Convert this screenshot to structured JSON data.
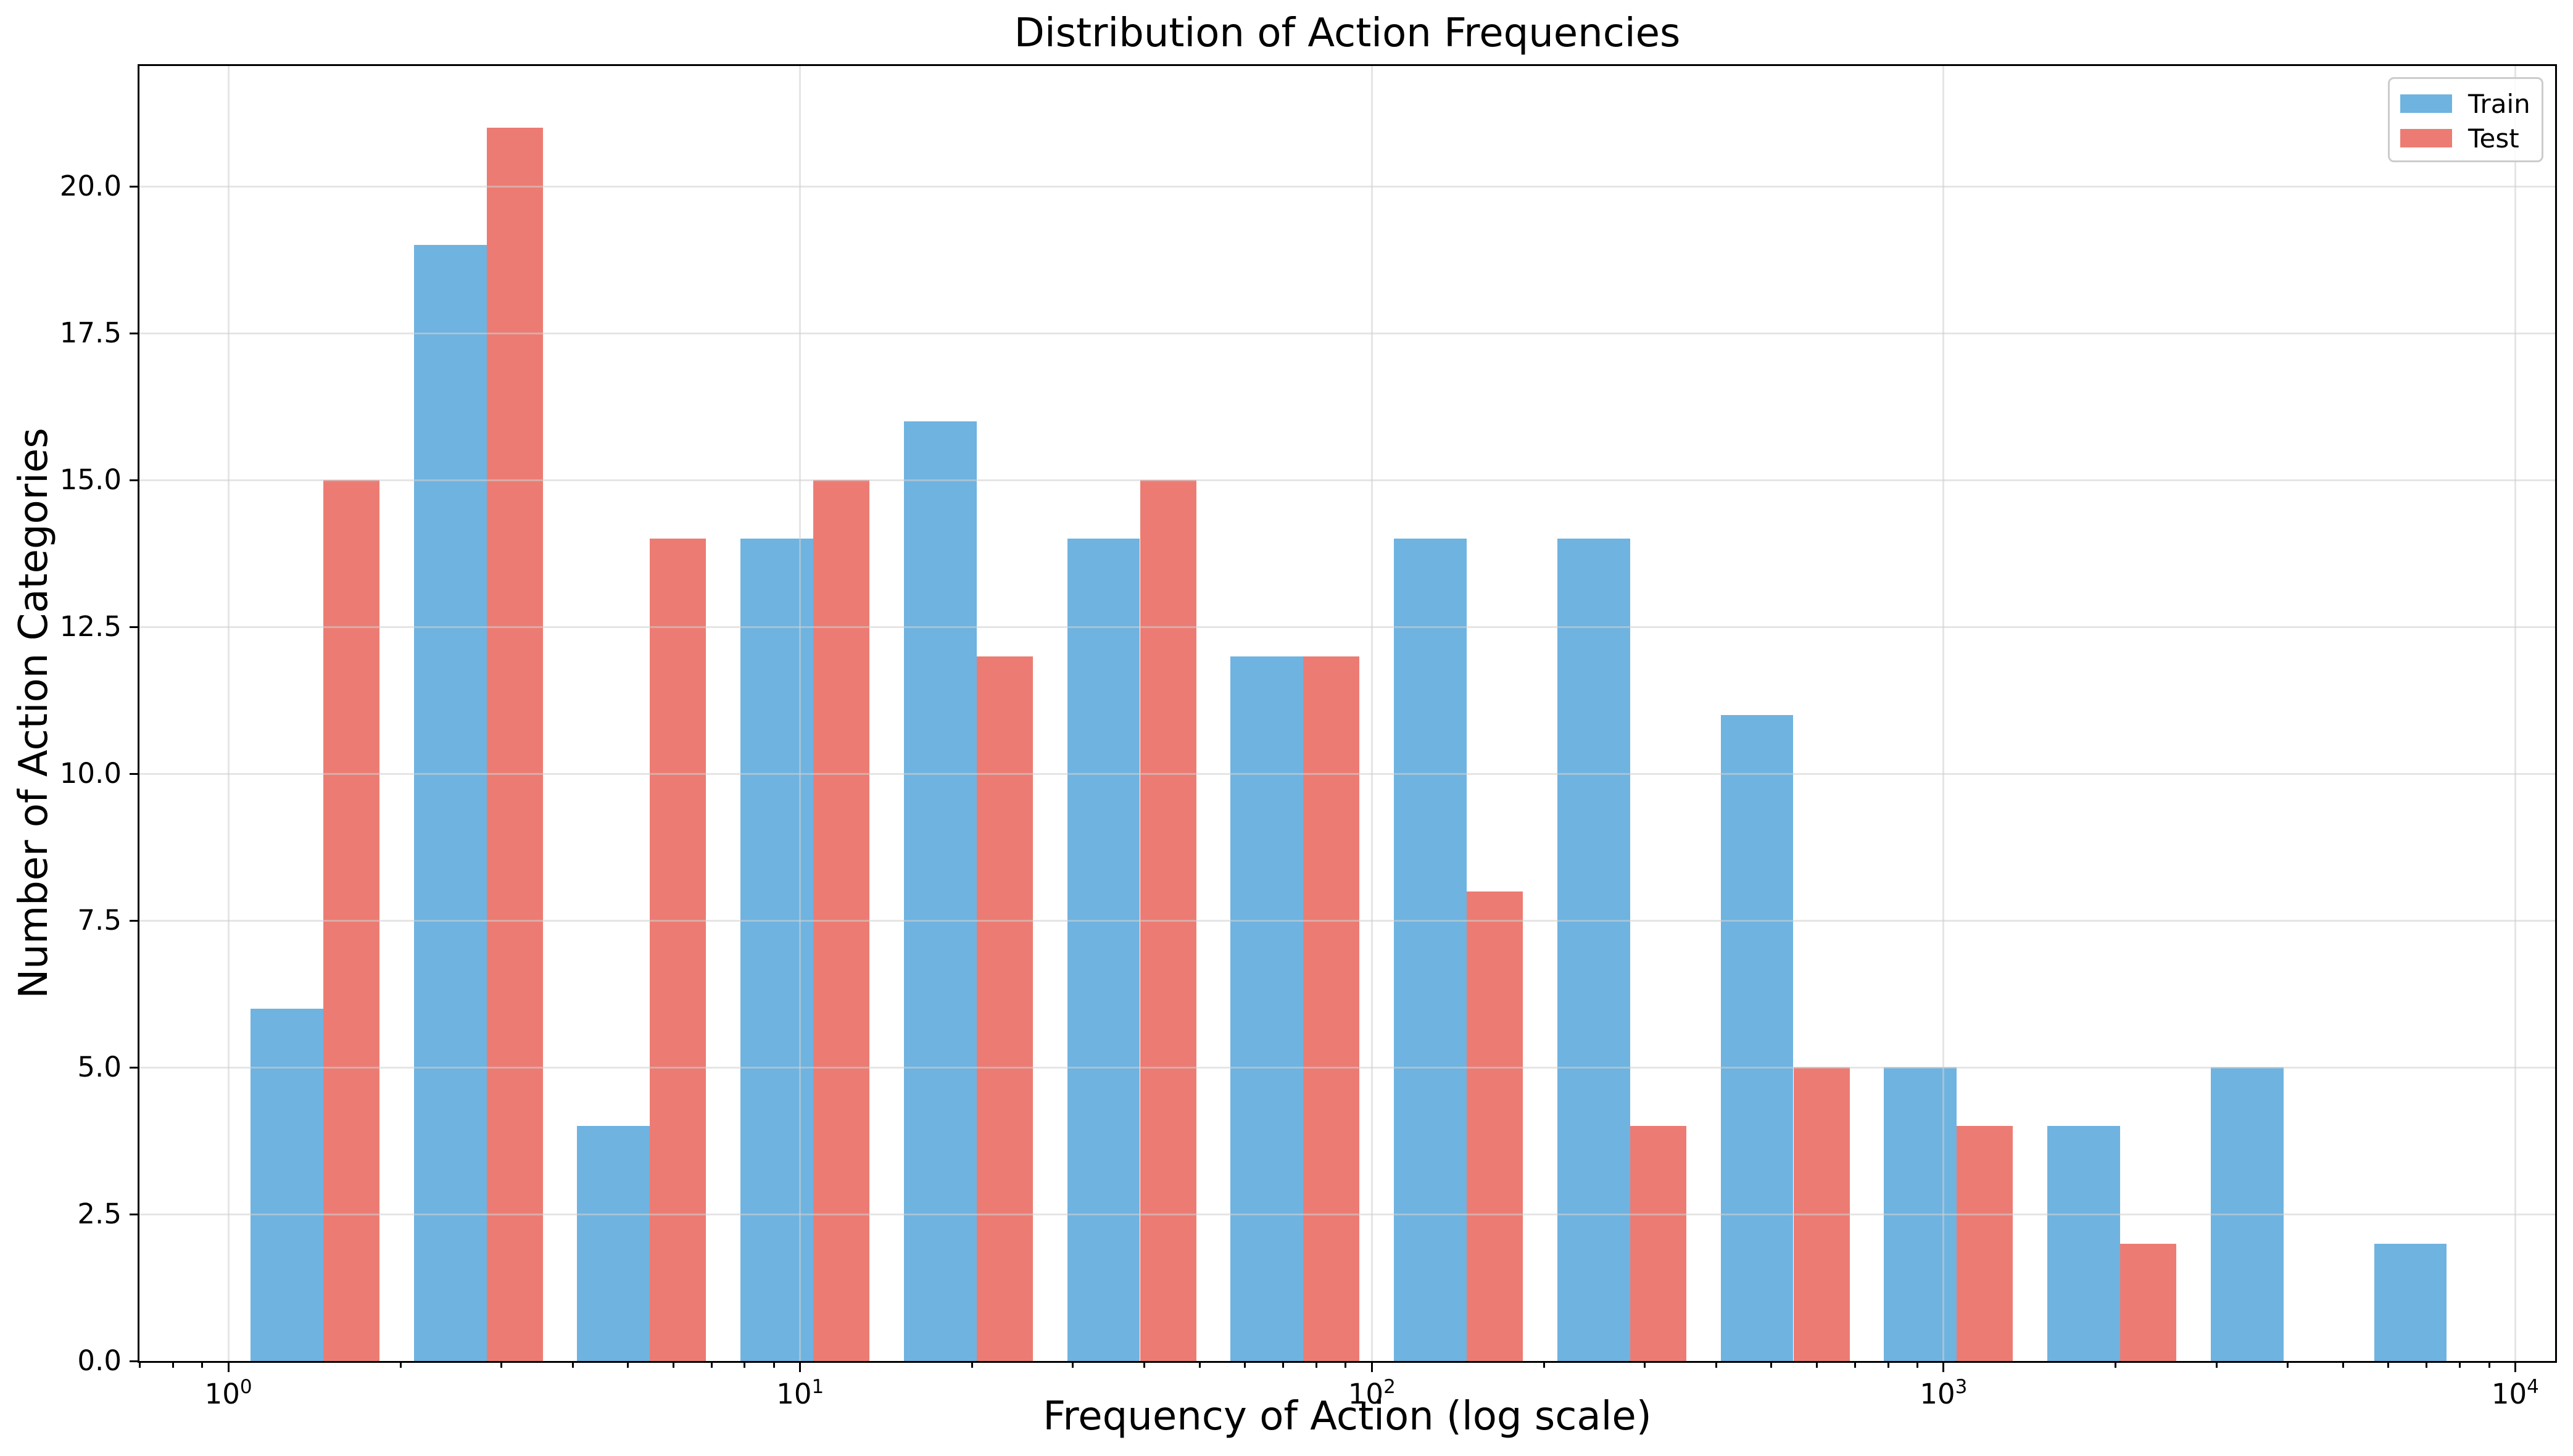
{
  "figure": {
    "background": "#ffffff"
  },
  "chart_data": {
    "type": "bar",
    "subtype": "histogram",
    "title": "Distribution of Action Frequencies",
    "xlabel": "Frequency of Action (log scale)",
    "ylabel": "Number of Action Categories",
    "x_scale": "log",
    "xlim": [
      0.699,
      11740
    ],
    "ylim": [
      0,
      22.05
    ],
    "grid": true,
    "bar_group_fill": 0.8,
    "bin_edges": [
      1.0,
      1.9307,
      3.7276,
      7.1969,
      13.895,
      26.827,
      51.7947,
      100.0,
      193.0698,
      372.7594,
      719.6857,
      1389.4955,
      2682.6958,
      5179.4747,
      10000.0
    ],
    "series": [
      {
        "name": "Train",
        "color": "#6FB3E0",
        "values": [
          6,
          19,
          4,
          14,
          16,
          14,
          12,
          14,
          14,
          11,
          5,
          4,
          5,
          2
        ]
      },
      {
        "name": "Test",
        "color": "#EC7C73",
        "values": [
          15,
          21,
          14,
          15,
          12,
          15,
          12,
          8,
          4,
          5,
          4,
          2,
          0,
          0
        ]
      }
    ],
    "y_ticks": [
      {
        "value": 0,
        "label": "0.0"
      },
      {
        "value": 2.5,
        "label": "2.5"
      },
      {
        "value": 5,
        "label": "5.0"
      },
      {
        "value": 7.5,
        "label": "7.5"
      },
      {
        "value": 10,
        "label": "10.0"
      },
      {
        "value": 12.5,
        "label": "12.5"
      },
      {
        "value": 15,
        "label": "15.0"
      },
      {
        "value": 17.5,
        "label": "17.5"
      },
      {
        "value": 20,
        "label": "20.0"
      }
    ],
    "x_ticks": [
      {
        "value": 1,
        "base": "10",
        "exp": "0"
      },
      {
        "value": 10,
        "base": "10",
        "exp": "1"
      },
      {
        "value": 100,
        "base": "10",
        "exp": "2"
      },
      {
        "value": 1000,
        "base": "10",
        "exp": "3"
      },
      {
        "value": 10000,
        "base": "10",
        "exp": "4"
      }
    ],
    "legend": {
      "position": "upper right",
      "entries": [
        "Train",
        "Test"
      ]
    },
    "colors": {
      "grid": "#e6e6e6",
      "spine": "#000000",
      "text": "#000000",
      "legend_border": "#cccccc"
    }
  }
}
